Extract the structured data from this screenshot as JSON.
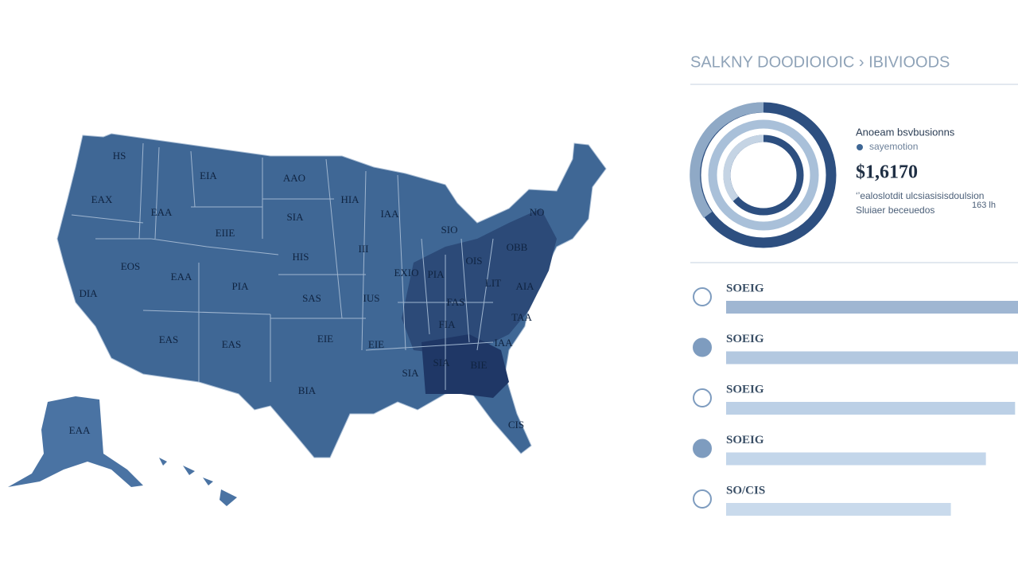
{
  "header": {
    "title": "SALKNY DOODIOIOIC › IBIVIOODS"
  },
  "map": {
    "state_labels": [
      "HS",
      "EAX",
      "EIA",
      "EAA",
      "EIIE",
      "AAO",
      "SIA",
      "HIS",
      "HIA",
      "IAA",
      "III",
      "EOS",
      "EAA",
      "PIA",
      "SAS",
      "IUS",
      "DIA",
      "EXIO",
      "PIA",
      "OIS",
      "OBB",
      "NO",
      "SIO",
      "FAS",
      "LIT",
      "AIA",
      "EIE",
      "EIE",
      "EAS",
      "EAS",
      "FIA",
      "TAA",
      "IAA",
      "SIA",
      "BIE",
      "SIA",
      "BIA",
      "CIS",
      "EAA"
    ]
  },
  "summary": {
    "heading": "Anoeam bsvbusionns",
    "subheading": "sayemotion",
    "amount": "$1,6170",
    "notes": [
      "‘’ealoslotdit ulcsiasisisdoulsion",
      "Sluiaer beceuedos"
    ],
    "side_note": "163 lh"
  },
  "bars": [
    {
      "label": "SOEIG",
      "value": 100
    },
    {
      "label": "SOEIG",
      "value": 100
    },
    {
      "label": "SOEIG",
      "value": 99
    },
    {
      "label": "SOEIG",
      "value": 89
    },
    {
      "label": "SO/CIS",
      "value": 77
    }
  ]
}
